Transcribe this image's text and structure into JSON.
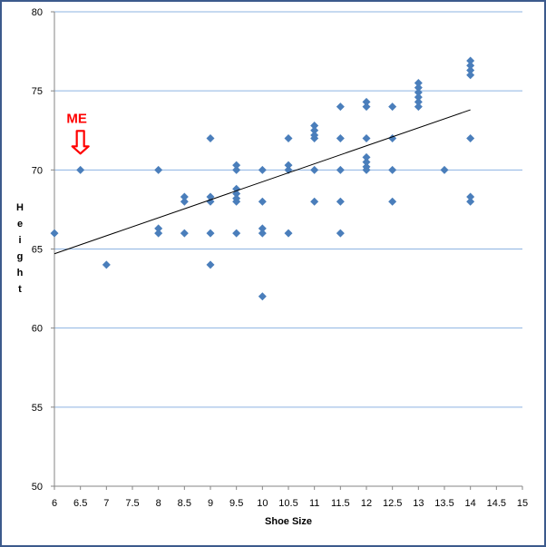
{
  "chart_data": {
    "type": "scatter",
    "title": "",
    "xlabel": "Shoe Size",
    "ylabel": "Height",
    "xlim": [
      6,
      15
    ],
    "ylim": [
      50,
      80
    ],
    "x_ticks": [
      "6",
      "6.5",
      "7",
      "7.5",
      "8",
      "8.5",
      "9",
      "9.5",
      "10",
      "10.5",
      "11",
      "11.5",
      "12",
      "12.5",
      "13",
      "13.5",
      "14",
      "14.5",
      "15"
    ],
    "y_ticks": [
      "50",
      "55",
      "60",
      "65",
      "70",
      "75",
      "80"
    ],
    "grid": "horizontal",
    "marker_color": "#4a7ebb",
    "gridline_color": "#8db3e2",
    "trendline": {
      "x": [
        6,
        14
      ],
      "y": [
        64.7,
        73.8
      ],
      "color": "#000000"
    },
    "annotation": {
      "text": "ME",
      "x": 6.5,
      "y": 70,
      "color": "#ff0000"
    },
    "points": [
      [
        6,
        66
      ],
      [
        6.5,
        70
      ],
      [
        7,
        64
      ],
      [
        8,
        70
      ],
      [
        8,
        66.3
      ],
      [
        8,
        66
      ],
      [
        8.5,
        68.3
      ],
      [
        8.5,
        68
      ],
      [
        8.5,
        66
      ],
      [
        9,
        72
      ],
      [
        9,
        68.3
      ],
      [
        9,
        68
      ],
      [
        9,
        66
      ],
      [
        9,
        64
      ],
      [
        9.5,
        70.3
      ],
      [
        9.5,
        70
      ],
      [
        9.5,
        68.8
      ],
      [
        9.5,
        68.5
      ],
      [
        9.5,
        68.2
      ],
      [
        9.5,
        68
      ],
      [
        9.5,
        66
      ],
      [
        10,
        70
      ],
      [
        10,
        68
      ],
      [
        10,
        66.3
      ],
      [
        10,
        66
      ],
      [
        10,
        62
      ],
      [
        10.5,
        72
      ],
      [
        10.5,
        70.3
      ],
      [
        10.5,
        70
      ],
      [
        10.5,
        66
      ],
      [
        11,
        72.8
      ],
      [
        11,
        72.5
      ],
      [
        11,
        72.2
      ],
      [
        11,
        72
      ],
      [
        11,
        70
      ],
      [
        11,
        68
      ],
      [
        11.5,
        74
      ],
      [
        11.5,
        72
      ],
      [
        11.5,
        70
      ],
      [
        11.5,
        68
      ],
      [
        11.5,
        66
      ],
      [
        12,
        74.3
      ],
      [
        12,
        74
      ],
      [
        12,
        72
      ],
      [
        12,
        70.8
      ],
      [
        12,
        70.5
      ],
      [
        12,
        70.2
      ],
      [
        12,
        70
      ],
      [
        12.5,
        74
      ],
      [
        12.5,
        72
      ],
      [
        12.5,
        70
      ],
      [
        12.5,
        68
      ],
      [
        13,
        75.5
      ],
      [
        13,
        75.2
      ],
      [
        13,
        74.9
      ],
      [
        13,
        74.6
      ],
      [
        13,
        74.3
      ],
      [
        13,
        74
      ],
      [
        13.5,
        70
      ],
      [
        14,
        76.9
      ],
      [
        14,
        76.6
      ],
      [
        14,
        76.3
      ],
      [
        14,
        76
      ],
      [
        14,
        72
      ],
      [
        14,
        68.3
      ],
      [
        14,
        68
      ]
    ]
  }
}
